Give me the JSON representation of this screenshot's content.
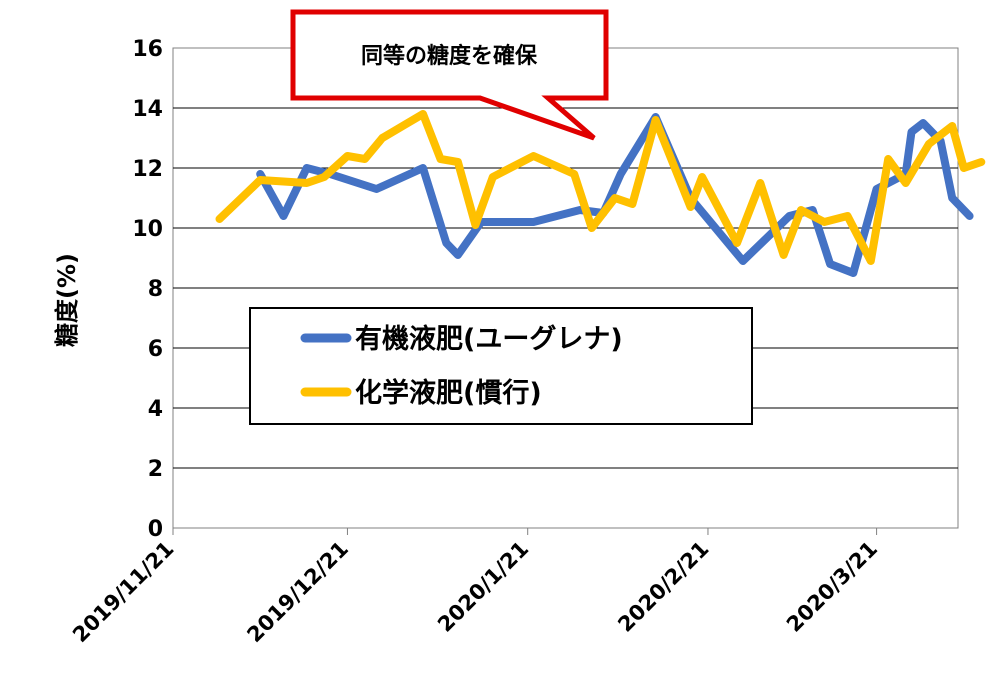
{
  "chart_data": {
    "type": "line",
    "ylabel": "糖度(%)",
    "ylim": [
      0,
      16
    ],
    "yticks": [
      "0",
      "2",
      "4",
      "6",
      "8",
      "10",
      "12",
      "14",
      "16"
    ],
    "xlim": [
      "2019-11-21",
      "2020-04-04"
    ],
    "xticks": [
      {
        "date": "2019-11-21",
        "label": "2019/11/21"
      },
      {
        "date": "2019-12-21",
        "label": "2019/12/21"
      },
      {
        "date": "2020-01-21",
        "label": "2020/1/21"
      },
      {
        "date": "2020-02-21",
        "label": "2020/2/21"
      },
      {
        "date": "2020-03-21",
        "label": "2020/3/21"
      }
    ],
    "grid": true,
    "legend_position": "center-left",
    "annotation": "同等の糖度を確保",
    "series": [
      {
        "name": "有機液肥(ユーグレナ)",
        "color": "#4472C4",
        "points": [
          [
            "2019-12-06",
            11.8
          ],
          [
            "2019-12-10",
            10.4
          ],
          [
            "2019-12-14",
            12.0
          ],
          [
            "2019-12-18",
            11.8
          ],
          [
            "2019-12-26",
            11.3
          ],
          [
            "2020-01-03",
            12.0
          ],
          [
            "2020-01-07",
            9.5
          ],
          [
            "2020-01-09",
            9.1
          ],
          [
            "2020-01-13",
            10.2
          ],
          [
            "2020-01-18",
            10.2
          ],
          [
            "2020-01-22",
            10.2
          ],
          [
            "2020-01-30",
            10.6
          ],
          [
            "2020-02-03",
            10.5
          ],
          [
            "2020-02-06",
            11.8
          ],
          [
            "2020-02-12",
            13.7
          ],
          [
            "2020-02-18",
            11.0
          ],
          [
            "2020-02-27",
            8.9
          ],
          [
            "2020-03-06",
            10.4
          ],
          [
            "2020-03-10",
            10.6
          ],
          [
            "2020-03-13",
            8.8
          ],
          [
            "2020-03-17",
            8.5
          ],
          [
            "2020-03-21",
            11.3
          ],
          [
            "2020-03-26",
            11.8
          ],
          [
            "2020-03-27",
            13.2
          ],
          [
            "2020-03-29",
            13.5
          ],
          [
            "2020-04-01",
            12.9
          ],
          [
            "2020-04-03",
            11.0
          ],
          [
            "2020-04-06",
            10.4
          ]
        ]
      },
      {
        "name": "化学液肥(慣行)",
        "color": "#FFC000",
        "points": [
          [
            "2019-11-29",
            10.3
          ],
          [
            "2019-12-06",
            11.6
          ],
          [
            "2019-12-14",
            11.5
          ],
          [
            "2019-12-17",
            11.7
          ],
          [
            "2019-12-21",
            12.4
          ],
          [
            "2019-12-24",
            12.3
          ],
          [
            "2019-12-27",
            13.0
          ],
          [
            "2020-01-03",
            13.8
          ],
          [
            "2020-01-06",
            12.3
          ],
          [
            "2020-01-09",
            12.2
          ],
          [
            "2020-01-12",
            10.1
          ],
          [
            "2020-01-15",
            11.7
          ],
          [
            "2020-01-22",
            12.4
          ],
          [
            "2020-01-29",
            11.8
          ],
          [
            "2020-02-01",
            10.0
          ],
          [
            "2020-02-05",
            11.0
          ],
          [
            "2020-02-08",
            10.8
          ],
          [
            "2020-02-12",
            13.6
          ],
          [
            "2020-02-18",
            10.7
          ],
          [
            "2020-02-20",
            11.7
          ],
          [
            "2020-02-26",
            9.5
          ],
          [
            "2020-03-01",
            11.5
          ],
          [
            "2020-03-05",
            9.1
          ],
          [
            "2020-03-08",
            10.6
          ],
          [
            "2020-03-12",
            10.2
          ],
          [
            "2020-03-16",
            10.4
          ],
          [
            "2020-03-20",
            8.9
          ],
          [
            "2020-03-23",
            12.3
          ],
          [
            "2020-03-26",
            11.5
          ],
          [
            "2020-03-30",
            12.8
          ],
          [
            "2020-04-03",
            13.4
          ],
          [
            "2020-04-05",
            12.0
          ],
          [
            "2020-04-08",
            12.2
          ]
        ]
      }
    ]
  }
}
